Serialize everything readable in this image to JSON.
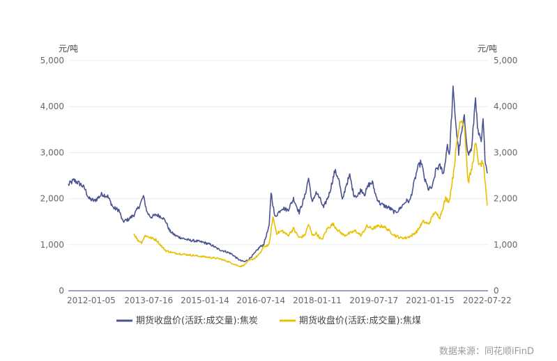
{
  "chart_data": {
    "type": "line",
    "title": "",
    "unit_left": "元/吨",
    "unit_right": "元/吨",
    "ylim": [
      0,
      5000
    ],
    "yticks": [
      "0",
      "1,000",
      "2,000",
      "3,000",
      "4,000",
      "5,000"
    ],
    "yticks_values": [
      0,
      1000,
      2000,
      3000,
      4000,
      5000
    ],
    "xlim": [
      2011.4,
      2022.58
    ],
    "xtick_labels": [
      "2012-01-05",
      "2013-07-16",
      "2015-01-14",
      "2016-07-14",
      "2018-01-11",
      "2019-07-17",
      "2021-01-15",
      "2022-07-22"
    ],
    "xtick_positions": [
      2012.01,
      2013.54,
      2015.04,
      2016.53,
      2018.03,
      2019.54,
      2021.04,
      2022.56
    ],
    "legend": [
      "期货收盘价(活跃:成交量):焦炭",
      "期货收盘价(活跃:成交量):焦煤"
    ],
    "source": "数据来源：同花顺iFinD",
    "series": [
      {
        "name": "期货收盘价(活跃:成交量):焦炭",
        "color": "#4a5390",
        "x": [
          2011.4,
          2011.55,
          2011.75,
          2011.85,
          2011.95,
          2012.1,
          2012.3,
          2012.45,
          2012.6,
          2012.75,
          2012.85,
          2013.0,
          2013.15,
          2013.3,
          2013.4,
          2013.5,
          2013.6,
          2013.75,
          2013.9,
          2014.0,
          2014.1,
          2014.25,
          2014.4,
          2014.6,
          2014.8,
          2015.0,
          2015.2,
          2015.4,
          2015.6,
          2015.75,
          2015.9,
          2016.0,
          2016.1,
          2016.2,
          2016.35,
          2016.5,
          2016.6,
          2016.75,
          2016.8,
          2016.9,
          2017.0,
          2017.1,
          2017.25,
          2017.4,
          2017.55,
          2017.7,
          2017.8,
          2017.9,
          2018.0,
          2018.1,
          2018.2,
          2018.35,
          2018.5,
          2018.6,
          2018.7,
          2018.8,
          2018.9,
          2019.0,
          2019.1,
          2019.2,
          2019.3,
          2019.4,
          2019.5,
          2019.6,
          2019.7,
          2019.8,
          2019.95,
          2020.1,
          2020.2,
          2020.3,
          2020.4,
          2020.5,
          2020.6,
          2020.7,
          2020.8,
          2020.9,
          2021.0,
          2021.1,
          2021.2,
          2021.3,
          2021.4,
          2021.5,
          2021.55,
          2021.65,
          2021.75,
          2021.8,
          2021.85,
          2021.95,
          2022.05,
          2022.15,
          2022.25,
          2022.3,
          2022.4,
          2022.45,
          2022.5,
          2022.56
        ],
        "y": [
          2300,
          2400,
          2300,
          2200,
          2000,
          1950,
          2100,
          2050,
          1800,
          1750,
          1500,
          1550,
          1650,
          1850,
          2050,
          1700,
          1600,
          1650,
          1600,
          1500,
          1300,
          1200,
          1150,
          1100,
          1080,
          1050,
          1000,
          900,
          850,
          800,
          700,
          650,
          630,
          680,
          800,
          950,
          1000,
          1400,
          2150,
          1600,
          1700,
          1800,
          1750,
          2000,
          1700,
          2050,
          2450,
          1900,
          2150,
          2000,
          1800,
          2100,
          2600,
          2450,
          1950,
          2300,
          2500,
          2100,
          2050,
          2200,
          2100,
          2300,
          2350,
          2050,
          1900,
          1850,
          1800,
          1700,
          1750,
          1850,
          1950,
          1950,
          2300,
          2650,
          2800,
          2400,
          2200,
          2250,
          2650,
          2700,
          2550,
          3200,
          2900,
          4350,
          3400,
          3000,
          3300,
          3750,
          2950,
          3100,
          4250,
          3500,
          3200,
          3700,
          2900,
          2550
        ]
      },
      {
        "name": "期货收盘价(活跃:成交量):焦煤",
        "color": "#e8c000",
        "x": [
          2013.14,
          2013.25,
          2013.35,
          2013.45,
          2013.6,
          2013.75,
          2013.9,
          2014.0,
          2014.2,
          2014.4,
          2014.6,
          2014.8,
          2015.0,
          2015.2,
          2015.4,
          2015.6,
          2015.75,
          2015.9,
          2016.0,
          2016.1,
          2016.2,
          2016.35,
          2016.5,
          2016.6,
          2016.75,
          2016.85,
          2016.95,
          2017.1,
          2017.25,
          2017.4,
          2017.55,
          2017.7,
          2017.8,
          2017.9,
          2018.0,
          2018.15,
          2018.3,
          2018.45,
          2018.6,
          2018.75,
          2018.9,
          2019.05,
          2019.2,
          2019.35,
          2019.5,
          2019.65,
          2019.8,
          2019.95,
          2020.1,
          2020.25,
          2020.4,
          2020.55,
          2020.7,
          2020.85,
          2021.0,
          2021.15,
          2021.3,
          2021.45,
          2021.55,
          2021.65,
          2021.75,
          2021.85,
          2021.95,
          2022.05,
          2022.15,
          2022.25,
          2022.35,
          2022.45,
          2022.56
        ],
        "y": [
          1250,
          1100,
          1050,
          1200,
          1150,
          1100,
          950,
          870,
          820,
          800,
          780,
          760,
          740,
          720,
          700,
          650,
          600,
          550,
          530,
          570,
          650,
          700,
          800,
          950,
          1000,
          1600,
          1250,
          1300,
          1200,
          1350,
          1150,
          1200,
          1450,
          1200,
          1250,
          1100,
          1350,
          1450,
          1300,
          1200,
          1250,
          1300,
          1200,
          1400,
          1350,
          1400,
          1400,
          1300,
          1200,
          1150,
          1150,
          1200,
          1300,
          1500,
          1450,
          1700,
          1600,
          2000,
          1950,
          2500,
          3200,
          3750,
          3600,
          2350,
          2650,
          3200,
          2700,
          2800,
          1850
        ]
      }
    ]
  }
}
